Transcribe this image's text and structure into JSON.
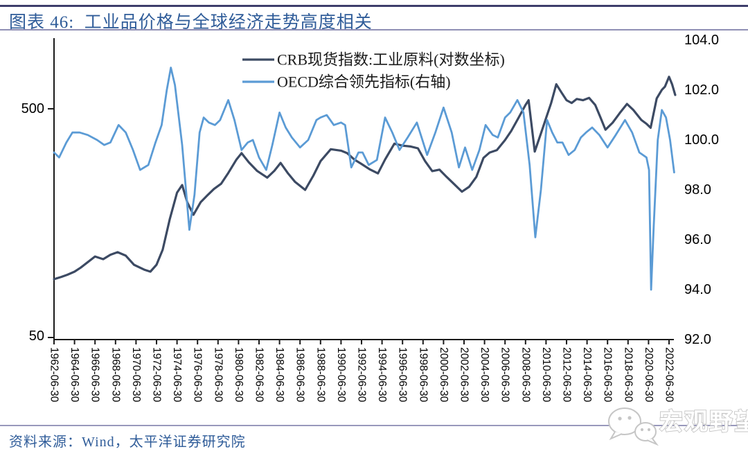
{
  "header": {
    "title": "图表 46:  工业品价格与全球经济走势高度相关"
  },
  "footer": {
    "source": "资料来源：Wind，太平洋证券研究院"
  },
  "watermark": {
    "label": "宏观野望",
    "icon": "wechat-icon"
  },
  "colors": {
    "crb_line": "#3C4A63",
    "oecd_line": "#5B9BD5",
    "title_text": "#2F5C99",
    "rule_dark": "#3E3E6B",
    "rule_light": "#8F8FB4",
    "axis": "#1a1a1a",
    "tick_label": "#000000",
    "watermark_outline": "#c6c6c6"
  },
  "chart_data": {
    "type": "line",
    "title": "工业品价格与全球经济走势高度相关",
    "legend_position": "top-center",
    "grid": false,
    "legend": [
      "CRB现货指数:工业原料(对数坐标)",
      "OECD综合领先指标(右轴)"
    ],
    "left_axis": {
      "scale": "log",
      "ticks": [
        "500",
        "50"
      ],
      "range": [
        50,
        500
      ]
    },
    "right_axis": {
      "ticks": [
        "104.0",
        "102.0",
        "100.0",
        "98.0",
        "96.0",
        "94.0",
        "92.0"
      ],
      "range": [
        92.0,
        104.0
      ]
    },
    "x_axis": {
      "range": [
        1962,
        2022.6
      ],
      "tick_labels": [
        "1962-06-30",
        "1964-06-30",
        "1966-06-30",
        "1968-06-30",
        "1970-06-30",
        "1972-06-30",
        "1974-06-30",
        "1976-06-30",
        "1978-06-30",
        "1980-06-30",
        "1982-06-30",
        "1984-06-30",
        "1986-06-30",
        "1988-06-30",
        "1990-06-30",
        "1992-06-30",
        "1994-06-30",
        "1996-06-30",
        "1998-06-30",
        "2000-06-30",
        "2002-06-30",
        "2004-06-30",
        "2006-06-30",
        "2008-06-30",
        "2010-06-30",
        "2012-06-30",
        "2014-06-30",
        "2016-06-30",
        "2018-06-30",
        "2020-06-30",
        "2022-06-30"
      ]
    },
    "series": [
      {
        "name": "CRB现货指数:工业原料(对数坐标)",
        "axis": "left",
        "color": "#3C4A63",
        "points": [
          [
            1962.0,
            90
          ],
          [
            1962.7,
            92
          ],
          [
            1963.3,
            94
          ],
          [
            1964.0,
            97
          ],
          [
            1964.6,
            101
          ],
          [
            1965.2,
            106
          ],
          [
            1966.0,
            113
          ],
          [
            1966.8,
            110
          ],
          [
            1967.5,
            115
          ],
          [
            1968.2,
            118
          ],
          [
            1969.0,
            114
          ],
          [
            1969.8,
            104
          ],
          [
            1970.8,
            99
          ],
          [
            1971.4,
            97
          ],
          [
            1972.0,
            104
          ],
          [
            1972.6,
            121
          ],
          [
            1973.3,
            165
          ],
          [
            1974.0,
            215
          ],
          [
            1974.5,
            232
          ],
          [
            1975.0,
            195
          ],
          [
            1975.6,
            172
          ],
          [
            1976.3,
            195
          ],
          [
            1977.0,
            210
          ],
          [
            1977.6,
            223
          ],
          [
            1978.3,
            235
          ],
          [
            1979.0,
            262
          ],
          [
            1979.8,
            300
          ],
          [
            1980.3,
            320
          ],
          [
            1981.0,
            292
          ],
          [
            1981.8,
            268
          ],
          [
            1982.8,
            250
          ],
          [
            1983.5,
            268
          ],
          [
            1984.1,
            290
          ],
          [
            1984.8,
            262
          ],
          [
            1985.5,
            240
          ],
          [
            1986.5,
            221
          ],
          [
            1987.3,
            255
          ],
          [
            1988.0,
            295
          ],
          [
            1989.0,
            333
          ],
          [
            1990.0,
            328
          ],
          [
            1990.6,
            320
          ],
          [
            1991.3,
            300
          ],
          [
            1992.0,
            287
          ],
          [
            1992.8,
            272
          ],
          [
            1993.6,
            261
          ],
          [
            1994.3,
            300
          ],
          [
            1995.2,
            352
          ],
          [
            1996.0,
            345
          ],
          [
            1996.8,
            342
          ],
          [
            1997.5,
            336
          ],
          [
            1998.2,
            295
          ],
          [
            1998.9,
            267
          ],
          [
            1999.6,
            271
          ],
          [
            2000.3,
            252
          ],
          [
            2001.0,
            235
          ],
          [
            2001.8,
            217
          ],
          [
            2002.5,
            228
          ],
          [
            2003.2,
            252
          ],
          [
            2003.9,
            305
          ],
          [
            2004.5,
            322
          ],
          [
            2005.2,
            330
          ],
          [
            2006.0,
            365
          ],
          [
            2006.6,
            400
          ],
          [
            2007.3,
            455
          ],
          [
            2008.0,
            520
          ],
          [
            2008.3,
            545
          ],
          [
            2008.9,
            325
          ],
          [
            2009.5,
            390
          ],
          [
            2010.0,
            455
          ],
          [
            2010.5,
            530
          ],
          [
            2011.0,
            640
          ],
          [
            2011.5,
            590
          ],
          [
            2012.0,
            545
          ],
          [
            2012.5,
            530
          ],
          [
            2013.0,
            552
          ],
          [
            2013.6,
            545
          ],
          [
            2014.2,
            558
          ],
          [
            2014.8,
            520
          ],
          [
            2015.3,
            460
          ],
          [
            2015.8,
            405
          ],
          [
            2016.5,
            435
          ],
          [
            2017.2,
            480
          ],
          [
            2017.9,
            525
          ],
          [
            2018.5,
            495
          ],
          [
            2019.3,
            447
          ],
          [
            2019.8,
            430
          ],
          [
            2020.2,
            413
          ],
          [
            2020.8,
            555
          ],
          [
            2021.3,
            605
          ],
          [
            2021.6,
            625
          ],
          [
            2022.0,
            690
          ],
          [
            2022.3,
            640
          ],
          [
            2022.6,
            575
          ]
        ]
      },
      {
        "name": "OECD综合领先指标(右轴)",
        "axis": "right",
        "color": "#5B9BD5",
        "points": [
          [
            1962.0,
            99.5
          ],
          [
            1962.5,
            99.3
          ],
          [
            1963.2,
            99.9
          ],
          [
            1963.8,
            100.3
          ],
          [
            1964.5,
            100.3
          ],
          [
            1965.3,
            100.2
          ],
          [
            1966.2,
            100.0
          ],
          [
            1966.9,
            99.8
          ],
          [
            1967.5,
            99.9
          ],
          [
            1968.3,
            100.6
          ],
          [
            1969.0,
            100.3
          ],
          [
            1969.7,
            99.6
          ],
          [
            1970.4,
            98.8
          ],
          [
            1971.2,
            99.0
          ],
          [
            1971.9,
            99.9
          ],
          [
            1972.5,
            100.6
          ],
          [
            1973.0,
            102.0
          ],
          [
            1973.4,
            102.9
          ],
          [
            1973.8,
            102.2
          ],
          [
            1974.5,
            99.8
          ],
          [
            1975.2,
            96.4
          ],
          [
            1975.7,
            97.8
          ],
          [
            1976.2,
            100.3
          ],
          [
            1976.6,
            100.9
          ],
          [
            1977.1,
            100.7
          ],
          [
            1977.7,
            100.6
          ],
          [
            1978.2,
            100.8
          ],
          [
            1979.0,
            101.6
          ],
          [
            1979.6,
            100.8
          ],
          [
            1980.3,
            99.6
          ],
          [
            1980.9,
            99.9
          ],
          [
            1981.4,
            100.0
          ],
          [
            1982.0,
            99.3
          ],
          [
            1982.7,
            98.8
          ],
          [
            1983.3,
            99.8
          ],
          [
            1984.0,
            101.1
          ],
          [
            1984.6,
            100.5
          ],
          [
            1985.2,
            100.1
          ],
          [
            1986.0,
            99.7
          ],
          [
            1986.8,
            100.0
          ],
          [
            1987.6,
            100.8
          ],
          [
            1988.0,
            100.9
          ],
          [
            1988.6,
            101.0
          ],
          [
            1989.3,
            100.6
          ],
          [
            1990.0,
            100.7
          ],
          [
            1990.4,
            100.6
          ],
          [
            1991.0,
            98.9
          ],
          [
            1991.7,
            99.5
          ],
          [
            1992.1,
            99.5
          ],
          [
            1992.7,
            99.0
          ],
          [
            1993.5,
            99.2
          ],
          [
            1994.3,
            100.9
          ],
          [
            1995.0,
            100.3
          ],
          [
            1995.7,
            99.6
          ],
          [
            1996.5,
            100.1
          ],
          [
            1997.4,
            100.7
          ],
          [
            1998.4,
            99.4
          ],
          [
            1999.2,
            100.3
          ],
          [
            2000.0,
            101.3
          ],
          [
            2000.8,
            100.3
          ],
          [
            2001.5,
            98.9
          ],
          [
            2002.1,
            99.7
          ],
          [
            2002.8,
            98.8
          ],
          [
            2003.5,
            99.6
          ],
          [
            2004.1,
            100.6
          ],
          [
            2004.8,
            100.2
          ],
          [
            2005.3,
            100.1
          ],
          [
            2006.0,
            100.9
          ],
          [
            2006.5,
            101.1
          ],
          [
            2007.2,
            101.6
          ],
          [
            2007.8,
            101.1
          ],
          [
            2008.4,
            99.0
          ],
          [
            2008.95,
            96.1
          ],
          [
            2009.5,
            98.0
          ],
          [
            2010.1,
            100.8
          ],
          [
            2010.6,
            100.3
          ],
          [
            2011.1,
            99.9
          ],
          [
            2011.6,
            99.9
          ],
          [
            2012.2,
            99.4
          ],
          [
            2012.8,
            99.6
          ],
          [
            2013.4,
            100.1
          ],
          [
            2013.9,
            100.3
          ],
          [
            2014.5,
            100.5
          ],
          [
            2015.2,
            100.2
          ],
          [
            2016.0,
            99.7
          ],
          [
            2016.8,
            100.2
          ],
          [
            2017.7,
            100.8
          ],
          [
            2018.4,
            100.3
          ],
          [
            2019.1,
            99.5
          ],
          [
            2019.8,
            99.3
          ],
          [
            2020.05,
            98.8
          ],
          [
            2020.25,
            94.0
          ],
          [
            2020.5,
            96.5
          ],
          [
            2020.9,
            100.0
          ],
          [
            2021.3,
            101.2
          ],
          [
            2021.7,
            100.9
          ],
          [
            2022.1,
            100.0
          ],
          [
            2022.5,
            98.7
          ]
        ]
      }
    ]
  }
}
